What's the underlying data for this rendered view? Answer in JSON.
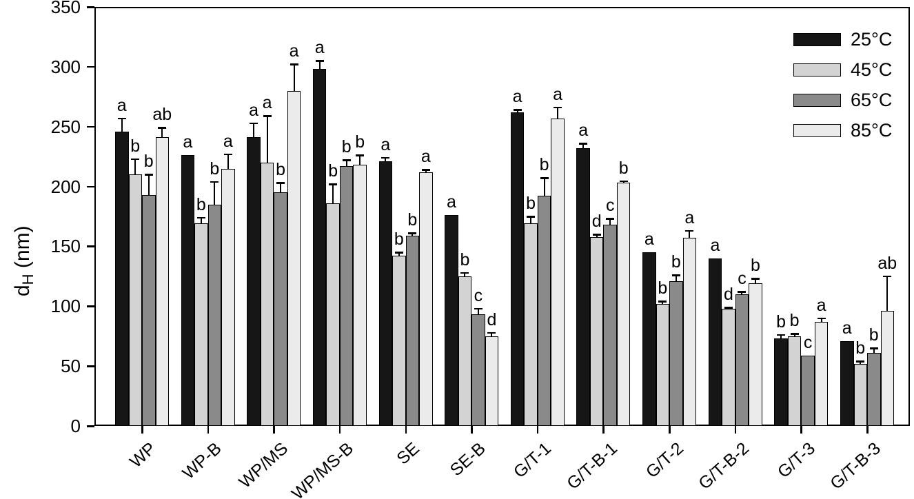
{
  "chart_data": {
    "type": "bar",
    "title": "",
    "ylabel": {
      "main": "d",
      "sub": "H",
      "unit": " (nm)"
    },
    "xlabel": "",
    "ylim": [
      0,
      350
    ],
    "ytick_step": 50,
    "yticks": [
      0,
      50,
      100,
      150,
      200,
      250,
      300,
      350
    ],
    "grid": false,
    "legend_position": "top-right",
    "background_color": "#ffffff",
    "axis_color": "#000000",
    "categories": [
      "WP",
      "WP-B",
      "WP/MS",
      "WP/MS-B",
      "SE",
      "SE-B",
      "G/T-1",
      "G/T-B-1",
      "G/T-2",
      "G/T-B-2",
      "G/T-3",
      "G/T-B-3"
    ],
    "series": [
      {
        "name": "25°C",
        "color": "#161616",
        "values": [
          246,
          226,
          241,
          298,
          221,
          176,
          262,
          232,
          145,
          140,
          73,
          71
        ],
        "errors": [
          11,
          0,
          12,
          7,
          3,
          0,
          2,
          4,
          0,
          0,
          3,
          0
        ],
        "letters": [
          "a",
          "a",
          "a",
          "a",
          "a",
          "a",
          "a",
          "a",
          "a",
          "a",
          "b",
          "a"
        ]
      },
      {
        "name": "45°C",
        "color": "#d3d3d3",
        "values": [
          210,
          169,
          220,
          186,
          142,
          125,
          169,
          158,
          102,
          98,
          75,
          52
        ],
        "errors": [
          13,
          5,
          39,
          16,
          3,
          3,
          6,
          2,
          2,
          1,
          2,
          2
        ],
        "letters": [
          "b",
          "b",
          "a",
          "b",
          "b",
          "b",
          "b",
          "d",
          "b",
          "d",
          "b",
          "b"
        ]
      },
      {
        "name": "65°C",
        "color": "#8a8a8a",
        "values": [
          193,
          185,
          195,
          217,
          159,
          93,
          192,
          168,
          121,
          110,
          59,
          61
        ],
        "errors": [
          17,
          19,
          8,
          5,
          2,
          5,
          15,
          5,
          5,
          2,
          0,
          4
        ],
        "letters": [
          "b",
          "b",
          "b",
          "b",
          "b",
          "c",
          "b",
          "c",
          "b",
          "c",
          "c",
          "b"
        ]
      },
      {
        "name": "85°C",
        "color": "#ebebeb",
        "values": [
          241,
          215,
          280,
          218,
          212,
          75,
          257,
          203,
          157,
          119,
          87,
          96
        ],
        "errors": [
          8,
          12,
          22,
          8,
          2,
          3,
          9,
          1.5,
          6,
          4,
          3,
          29
        ],
        "letters": [
          "ab",
          "a",
          "a",
          "b",
          "a",
          "d",
          "a",
          "b",
          "a",
          "b",
          "a",
          "ab"
        ]
      }
    ]
  }
}
